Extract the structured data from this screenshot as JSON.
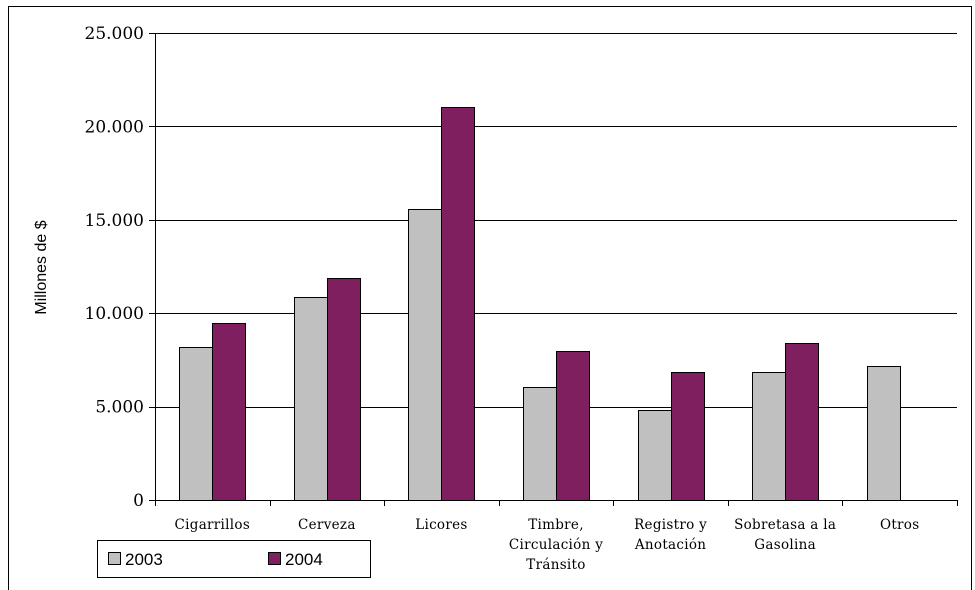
{
  "chart_data": {
    "type": "bar",
    "ylabel": "Millones de $",
    "ylim": [
      0,
      25000
    ],
    "yticks": [
      {
        "value": 0,
        "label": "0"
      },
      {
        "value": 5000,
        "label": "5.000"
      },
      {
        "value": 10000,
        "label": "10.000"
      },
      {
        "value": 15000,
        "label": "15.000"
      },
      {
        "value": 20000,
        "label": "20.000"
      },
      {
        "value": 25000,
        "label": "25.000"
      }
    ],
    "categories": [
      [
        "Cigarrillos"
      ],
      [
        "Cerveza"
      ],
      [
        "Licores"
      ],
      [
        "Timbre,",
        "Circulación y",
        "Tránsito"
      ],
      [
        "Registro y",
        "Anotación"
      ],
      [
        "Sobretasa a la",
        "Gasolina"
      ],
      [
        "Otros"
      ]
    ],
    "series": [
      {
        "name": "2003",
        "color": "#c0c0c0",
        "values": [
          8200,
          10850,
          15600,
          6050,
          4800,
          6850,
          7150
        ]
      },
      {
        "name": "2004",
        "color": "#7f1f5f",
        "values": [
          9450,
          11900,
          21050,
          8000,
          6850,
          8400,
          null
        ]
      }
    ],
    "grid": true,
    "legend_position": "bottom-left"
  }
}
